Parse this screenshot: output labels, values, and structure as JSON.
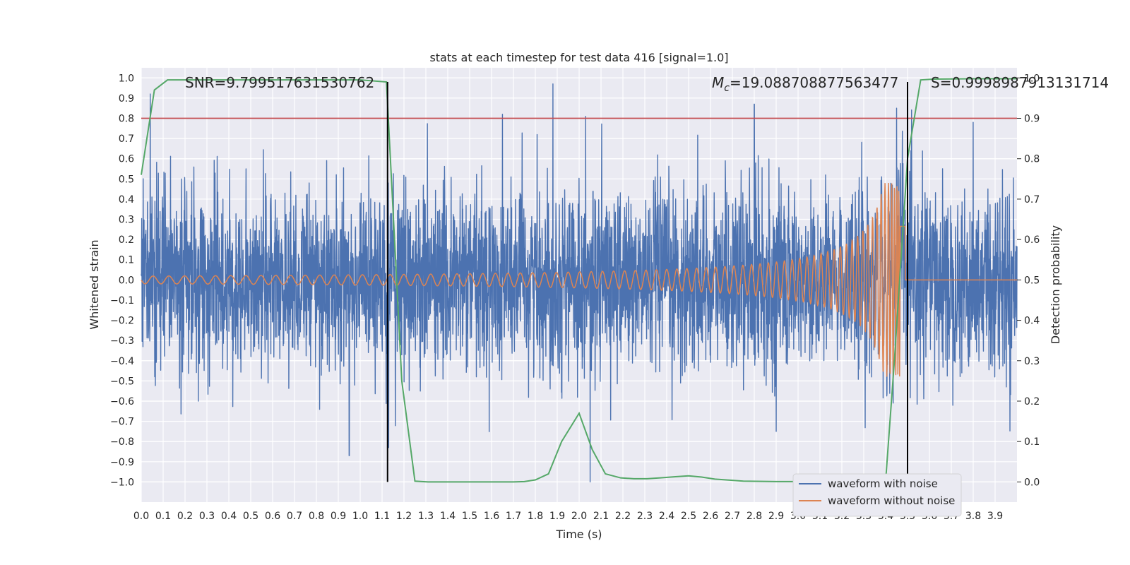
{
  "chart_data": {
    "type": "line",
    "title": "stats at each timestep for test data 416 [signal=1.0]",
    "xlabel": "Time (s)",
    "ylabel_left": "Whitened strain",
    "ylabel_right": "Detection probability",
    "xlim": [
      0.0,
      4.0
    ],
    "ylim_left": [
      -1.1,
      1.05
    ],
    "ylim_right": [
      -0.05,
      1.025
    ],
    "xticks": [
      "0.0",
      "0.1",
      "0.2",
      "0.3",
      "0.4",
      "0.5",
      "0.6",
      "0.7",
      "0.8",
      "0.9",
      "1.0",
      "1.1",
      "1.2",
      "1.3",
      "1.4",
      "1.5",
      "1.6",
      "1.7",
      "1.8",
      "1.9",
      "2.0",
      "2.1",
      "2.2",
      "2.3",
      "2.4",
      "2.5",
      "2.6",
      "2.7",
      "2.8",
      "2.9",
      "3.0",
      "3.1",
      "3.2",
      "3.3",
      "3.4",
      "3.5",
      "3.6",
      "3.7",
      "3.8",
      "3.9"
    ],
    "yticks_left": [
      "1.0",
      "0.9",
      "0.8",
      "0.7",
      "0.6",
      "0.5",
      "0.4",
      "0.3",
      "0.2",
      "0.1",
      "0.0",
      "−0.1",
      "−0.2",
      "−0.3",
      "−0.4",
      "−0.5",
      "−0.6",
      "−0.7",
      "−0.8",
      "−0.9",
      "−1.0"
    ],
    "yticks_right": [
      "1.0",
      "0.9",
      "0.8",
      "0.7",
      "0.6",
      "0.5",
      "0.4",
      "0.3",
      "0.2",
      "0.1",
      "0.0"
    ],
    "annotations": {
      "snr": "SNR=9.799517631530762",
      "mc_symbol": "M",
      "mc_sub": "c",
      "mc_value": "=19.088708877563477",
      "s": "S=0.9998987913131714"
    },
    "grid": true,
    "legend_position": "lower-right",
    "series": [
      {
        "name": "waveform with noise",
        "color": "#4c72b0",
        "kind": "noise",
        "amplitude_range": [
          -1.0,
          0.97
        ],
        "notable_peaks": [
          [
            1.88,
            0.97
          ],
          [
            1.65,
            0.82
          ],
          [
            2.03,
            0.81
          ],
          [
            2.8,
            0.87
          ],
          [
            3.45,
            0.85
          ],
          [
            3.8,
            0.78
          ],
          [
            0.95,
            -0.87
          ],
          [
            2.05,
            -1.0
          ],
          [
            1.13,
            -0.83
          ],
          [
            2.9,
            -0.75
          ]
        ]
      },
      {
        "name": "waveform without noise",
        "color": "#dd8452",
        "kind": "chirp",
        "t_merger": 3.47,
        "peak_amplitude": 0.48,
        "start_amplitude": 0.02
      },
      {
        "color": "#55a868",
        "axis": "right",
        "x": [
          0.0,
          0.06,
          0.12,
          0.3,
          0.6,
          0.9,
          1.0,
          1.12,
          1.19,
          1.25,
          1.31,
          1.5,
          1.7,
          1.75,
          1.8,
          1.86,
          1.92,
          2.0,
          2.06,
          2.12,
          2.19,
          2.25,
          2.31,
          2.37,
          2.44,
          2.5,
          2.56,
          2.62,
          2.75,
          2.9,
          3.1,
          3.3,
          3.4,
          3.44,
          3.47,
          3.5,
          3.56,
          3.62,
          3.8,
          4.0
        ],
        "y": [
          0.76,
          0.97,
          0.995,
          0.995,
          0.995,
          0.995,
          0.995,
          0.99,
          0.25,
          0.002,
          0.0,
          0.0,
          0.0,
          0.001,
          0.005,
          0.02,
          0.1,
          0.17,
          0.08,
          0.02,
          0.01,
          0.008,
          0.008,
          0.01,
          0.013,
          0.015,
          0.012,
          0.007,
          0.002,
          0.001,
          0.001,
          0.001,
          0.003,
          0.3,
          0.55,
          0.8,
          0.995,
          0.997,
          0.998,
          0.998
        ]
      },
      {
        "color": "#c44e52",
        "axis": "right",
        "kind": "hline",
        "y": 0.9
      }
    ],
    "vlines": [
      {
        "x": 1.125,
        "color": "#000000",
        "ymin": -1.0,
        "ymax": 0.98
      },
      {
        "x": 3.5,
        "color": "#000000",
        "ymin": -1.0,
        "ymax": 0.98
      }
    ],
    "legend": [
      {
        "label": "waveform with noise",
        "color": "#4c72b0"
      },
      {
        "label": "waveform without noise",
        "color": "#dd8452"
      }
    ]
  }
}
